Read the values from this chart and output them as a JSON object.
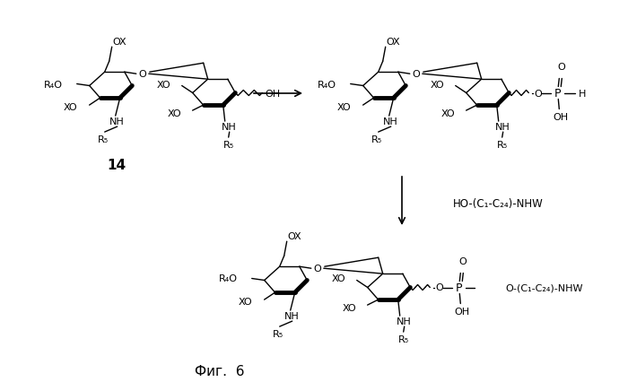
{
  "background_color": "#ffffff",
  "fig_label": "Фиг.  6",
  "compound_14": "14",
  "reagent": "HO-(C₁-C₂₄)-NHW",
  "labels": {
    "OX": "OX",
    "R4O": "R₄O",
    "XO": "XO",
    "NH": "NH",
    "R5": "R₅",
    "OH": "OH",
    "O": "O",
    "P": "P",
    "H": "H",
    "chain": "O-(C₁-C₂₄)-NHW"
  }
}
